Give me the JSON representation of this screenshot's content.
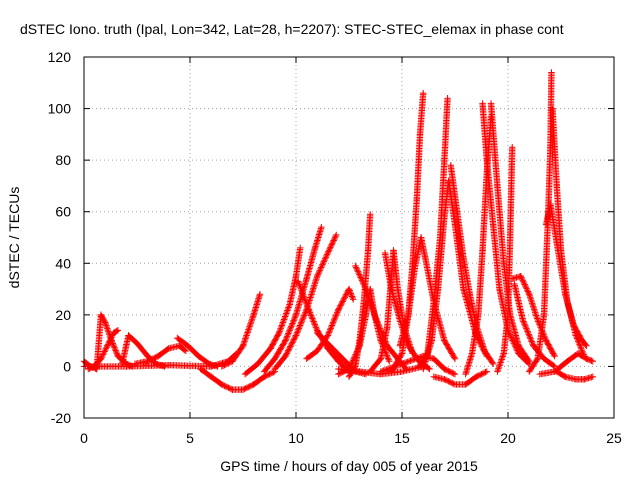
{
  "chart_data": {
    "type": "scatter",
    "title": "dSTEC Iono. truth (Ipal, Lon=342, Lat=28, h=2207): STEC-STEC_elemax in phase cont",
    "xlabel": "GPS time / hours of day 005 of year 2015",
    "ylabel": "dSTEC  / TECUs",
    "xlim": [
      0,
      25
    ],
    "ylim": [
      -20,
      120
    ],
    "xticks": [
      0,
      5,
      10,
      15,
      20,
      25
    ],
    "yticks": [
      -20,
      0,
      20,
      40,
      60,
      80,
      100,
      120
    ],
    "grid": true,
    "marker": "plus",
    "marker_color": "#ff0000",
    "series": [
      {
        "points": [
          [
            0.0,
            2
          ],
          [
            0.3,
            0
          ],
          [
            0.6,
            -1
          ],
          [
            0.8,
            20
          ],
          [
            1.0,
            17
          ],
          [
            1.3,
            10
          ],
          [
            1.6,
            4
          ],
          [
            2.0,
            1
          ],
          [
            2.3,
            0
          ]
        ]
      },
      {
        "points": [
          [
            0.2,
            -1
          ],
          [
            0.5,
            0
          ],
          [
            0.8,
            3
          ],
          [
            1.1,
            8
          ],
          [
            1.4,
            13
          ],
          [
            1.6,
            14
          ]
        ]
      },
      {
        "points": [
          [
            1.8,
            1
          ],
          [
            2.1,
            12
          ],
          [
            2.5,
            9
          ],
          [
            3.0,
            4
          ],
          [
            3.4,
            1
          ],
          [
            3.8,
            0
          ]
        ]
      },
      {
        "points": [
          [
            2.4,
            1
          ],
          [
            3.0,
            2
          ],
          [
            3.5,
            4
          ],
          [
            4.0,
            7
          ],
          [
            4.5,
            8
          ],
          [
            4.8,
            6
          ]
        ]
      },
      {
        "points": [
          [
            4.4,
            11
          ],
          [
            4.9,
            8
          ],
          [
            5.4,
            4
          ],
          [
            5.9,
            1
          ],
          [
            6.3,
            0
          ]
        ]
      },
      {
        "points": [
          [
            0.0,
            0
          ],
          [
            2.0,
            0
          ],
          [
            4.0,
            0.5
          ],
          [
            6.0,
            0
          ],
          [
            6.8,
            2
          ],
          [
            7.2,
            5
          ]
        ]
      },
      {
        "points": [
          [
            5.5,
            -1
          ],
          [
            6.0,
            -4
          ],
          [
            6.5,
            -7
          ],
          [
            7.0,
            -9
          ],
          [
            7.5,
            -9
          ],
          [
            8.0,
            -7
          ],
          [
            8.5,
            -4
          ],
          [
            9.0,
            -2
          ]
        ]
      },
      {
        "points": [
          [
            6.5,
            0
          ],
          [
            7.0,
            2
          ],
          [
            7.5,
            8
          ],
          [
            8.0,
            20
          ],
          [
            8.3,
            28
          ]
        ]
      },
      {
        "points": [
          [
            7.6,
            -3
          ],
          [
            8.2,
            1
          ],
          [
            8.8,
            7
          ],
          [
            9.2,
            13
          ],
          [
            9.7,
            24
          ],
          [
            10.0,
            35
          ],
          [
            10.2,
            46
          ]
        ]
      },
      {
        "points": [
          [
            8.5,
            -2
          ],
          [
            9.0,
            3
          ],
          [
            9.5,
            10
          ],
          [
            10.0,
            20
          ],
          [
            10.5,
            34
          ],
          [
            10.9,
            46
          ],
          [
            11.2,
            54
          ]
        ]
      },
      {
        "points": [
          [
            9.0,
            -1
          ],
          [
            9.5,
            4
          ],
          [
            10.0,
            12
          ],
          [
            10.5,
            22
          ],
          [
            11.0,
            35
          ],
          [
            11.5,
            44
          ],
          [
            11.9,
            51
          ]
        ]
      },
      {
        "points": [
          [
            10.1,
            33
          ],
          [
            10.6,
            22
          ],
          [
            11.0,
            14
          ],
          [
            11.5,
            7
          ],
          [
            12.0,
            2
          ],
          [
            12.5,
            -2
          ]
        ]
      },
      {
        "points": [
          [
            10.5,
            3
          ],
          [
            11.0,
            6
          ],
          [
            11.5,
            12
          ],
          [
            12.0,
            22
          ],
          [
            12.5,
            30
          ],
          [
            12.7,
            26
          ]
        ]
      },
      {
        "points": [
          [
            11.0,
            13
          ],
          [
            11.6,
            8
          ],
          [
            12.2,
            3
          ],
          [
            12.8,
            -2
          ],
          [
            13.3,
            -3
          ]
        ]
      },
      {
        "points": [
          [
            12.5,
            -4
          ],
          [
            12.8,
            0
          ],
          [
            13.0,
            10
          ],
          [
            13.2,
            25
          ],
          [
            13.4,
            45
          ],
          [
            13.5,
            59
          ]
        ]
      },
      {
        "points": [
          [
            12.8,
            39
          ],
          [
            13.3,
            30
          ],
          [
            13.8,
            18
          ],
          [
            14.3,
            8
          ],
          [
            14.8,
            3
          ],
          [
            15.2,
            -1
          ]
        ]
      },
      {
        "points": [
          [
            12.0,
            -3
          ],
          [
            12.5,
            -1
          ],
          [
            13.0,
            8
          ],
          [
            13.3,
            20
          ],
          [
            13.5,
            30
          ],
          [
            13.7,
            20
          ],
          [
            14.0,
            10
          ],
          [
            14.4,
            2
          ]
        ]
      },
      {
        "points": [
          [
            13.5,
            -2
          ],
          [
            14.0,
            3
          ],
          [
            14.3,
            15
          ],
          [
            14.5,
            35
          ],
          [
            14.6,
            45
          ],
          [
            14.8,
            30
          ],
          [
            15.1,
            15
          ],
          [
            15.5,
            5
          ]
        ]
      },
      {
        "points": [
          [
            14.2,
            44
          ],
          [
            14.5,
            30
          ],
          [
            14.9,
            18
          ],
          [
            15.3,
            8
          ],
          [
            15.8,
            2
          ],
          [
            16.3,
            -1
          ]
        ]
      },
      {
        "points": [
          [
            14.5,
            -2
          ],
          [
            15.0,
            5
          ],
          [
            15.3,
            20
          ],
          [
            15.5,
            40
          ],
          [
            15.7,
            65
          ],
          [
            15.85,
            90
          ],
          [
            16.0,
            106
          ]
        ]
      },
      {
        "points": [
          [
            14.9,
            8
          ],
          [
            15.3,
            20
          ],
          [
            15.6,
            38
          ],
          [
            15.9,
            50
          ],
          [
            16.1,
            42
          ],
          [
            16.5,
            25
          ],
          [
            17.0,
            10
          ],
          [
            17.5,
            3
          ]
        ]
      },
      {
        "points": [
          [
            15.8,
            0
          ],
          [
            16.2,
            5
          ],
          [
            16.5,
            25
          ],
          [
            16.8,
            50
          ],
          [
            17.0,
            80
          ],
          [
            17.15,
            104
          ]
        ]
      },
      {
        "points": [
          [
            16.0,
            -1
          ],
          [
            16.4,
            10
          ],
          [
            16.7,
            30
          ],
          [
            17.0,
            58
          ],
          [
            17.2,
            72
          ],
          [
            17.5,
            55
          ],
          [
            17.9,
            30
          ],
          [
            18.5,
            12
          ],
          [
            19.0,
            4
          ]
        ]
      },
      {
        "points": [
          [
            17.3,
            78
          ],
          [
            17.6,
            60
          ],
          [
            17.9,
            42
          ],
          [
            18.2,
            28
          ],
          [
            18.5,
            16
          ],
          [
            18.9,
            6
          ],
          [
            19.3,
            1
          ]
        ]
      },
      {
        "points": [
          [
            16.5,
            -4
          ],
          [
            17.0,
            -5
          ],
          [
            17.5,
            -7
          ],
          [
            18.0,
            -7
          ],
          [
            18.5,
            -4
          ],
          [
            19.0,
            -2
          ]
        ]
      },
      {
        "points": [
          [
            18.0,
            -3
          ],
          [
            18.3,
            5
          ],
          [
            18.6,
            20
          ],
          [
            18.8,
            45
          ],
          [
            19.0,
            75
          ],
          [
            19.2,
            97
          ]
        ]
      },
      {
        "points": [
          [
            18.8,
            102
          ],
          [
            19.0,
            80
          ],
          [
            19.3,
            55
          ],
          [
            19.6,
            30
          ],
          [
            20.0,
            14
          ],
          [
            20.5,
            5
          ],
          [
            21.0,
            1
          ]
        ]
      },
      {
        "points": [
          [
            19.2,
            102
          ],
          [
            19.5,
            70
          ],
          [
            19.8,
            40
          ],
          [
            20.1,
            20
          ],
          [
            20.5,
            8
          ],
          [
            21.0,
            2
          ]
        ]
      },
      {
        "points": [
          [
            19.5,
            -2
          ],
          [
            19.8,
            5
          ],
          [
            20.0,
            20
          ],
          [
            20.1,
            50
          ],
          [
            20.2,
            85
          ]
        ]
      },
      {
        "points": [
          [
            20.3,
            32
          ],
          [
            20.7,
            18
          ],
          [
            21.2,
            8
          ],
          [
            21.7,
            3
          ],
          [
            22.2,
            0
          ]
        ]
      },
      {
        "points": [
          [
            20.2,
            34
          ],
          [
            20.6,
            35
          ],
          [
            21.0,
            28
          ],
          [
            21.4,
            18
          ],
          [
            21.8,
            10
          ],
          [
            22.2,
            4
          ]
        ]
      },
      {
        "points": [
          [
            21.0,
            -2
          ],
          [
            21.4,
            3
          ],
          [
            21.7,
            20
          ],
          [
            21.9,
            60
          ],
          [
            22.0,
            85
          ],
          [
            22.05,
            114
          ]
        ]
      },
      {
        "points": [
          [
            22.1,
            100
          ],
          [
            22.3,
            70
          ],
          [
            22.5,
            45
          ],
          [
            22.8,
            25
          ],
          [
            23.2,
            12
          ],
          [
            23.6,
            4
          ]
        ]
      },
      {
        "points": [
          [
            21.8,
            55
          ],
          [
            22.0,
            63
          ],
          [
            22.3,
            48
          ],
          [
            22.7,
            28
          ],
          [
            23.1,
            16
          ],
          [
            23.5,
            10
          ],
          [
            23.7,
            8
          ]
        ]
      },
      {
        "points": [
          [
            22.3,
            -2
          ],
          [
            22.7,
            -4
          ],
          [
            23.2,
            -5
          ],
          [
            23.6,
            -5
          ],
          [
            24.0,
            -4
          ]
        ]
      },
      {
        "points": [
          [
            21.5,
            -3
          ],
          [
            22.2,
            -2
          ],
          [
            22.8,
            2
          ],
          [
            23.3,
            5
          ],
          [
            23.7,
            3
          ],
          [
            24.0,
            2
          ]
        ]
      },
      {
        "points": [
          [
            14.0,
            -2
          ],
          [
            15.0,
            1
          ],
          [
            16.0,
            4
          ],
          [
            16.5,
            3
          ],
          [
            17.0,
            -1
          ],
          [
            17.5,
            -3
          ]
        ]
      },
      {
        "points": [
          [
            12.0,
            -1
          ],
          [
            13.0,
            -2
          ],
          [
            14.0,
            -3
          ],
          [
            15.0,
            -2
          ],
          [
            16.0,
            0
          ]
        ]
      }
    ]
  }
}
